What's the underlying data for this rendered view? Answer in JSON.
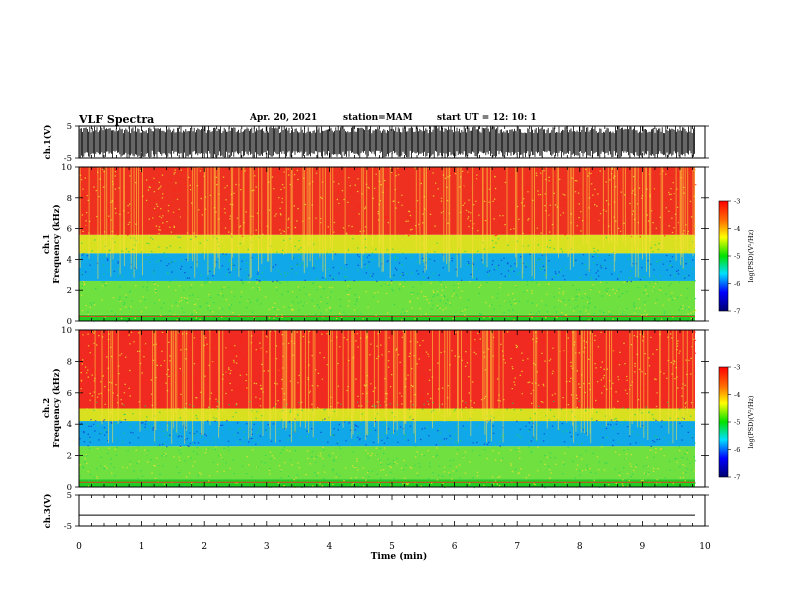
{
  "header": {
    "title": "VLF Spectra",
    "date": "Apr. 20, 2021",
    "station": "station=MAM",
    "start": "start  UT  =   12: 10: 1"
  },
  "chart_data": [
    {
      "type": "line",
      "panel": "ch1-waveform",
      "ylabel": "ch.1(V)",
      "yticks": [
        "5",
        "-5"
      ],
      "ylim": [
        -5,
        5
      ],
      "trace": "dense noise-like waveform filling the range"
    },
    {
      "type": "heatmap",
      "panel": "ch1-spectrogram",
      "ylabel": [
        "ch.1",
        "Frequency (kHz)"
      ],
      "yticks": [
        "0",
        "2",
        "4",
        "6",
        "8",
        "10"
      ],
      "ylim": [
        0,
        10
      ],
      "bands": [
        {
          "from": 0.0,
          "to": 0.4,
          "color": "#22cc22"
        },
        {
          "from": 0.4,
          "to": 2.6,
          "color": "#6ee040"
        },
        {
          "from": 2.6,
          "to": 4.4,
          "color": "#10a8e8"
        },
        {
          "from": 4.4,
          "to": 5.6,
          "color": "#d8e020"
        },
        {
          "from": 5.6,
          "to": 10.0,
          "color": "#ee3020"
        }
      ]
    },
    {
      "type": "heatmap",
      "panel": "ch2-spectrogram",
      "ylabel": [
        "ch.2",
        "Frequency (kHz)"
      ],
      "yticks": [
        "0",
        "2",
        "4",
        "6",
        "8",
        "10"
      ],
      "ylim": [
        0,
        10
      ],
      "bands": [
        {
          "from": 0.0,
          "to": 0.5,
          "color": "#22cc22"
        },
        {
          "from": 0.5,
          "to": 2.6,
          "color": "#70e040"
        },
        {
          "from": 2.6,
          "to": 4.2,
          "color": "#10a8e8"
        },
        {
          "from": 4.2,
          "to": 5.0,
          "color": "#d8e020"
        },
        {
          "from": 5.0,
          "to": 10.0,
          "color": "#f02a20"
        }
      ]
    },
    {
      "type": "line",
      "panel": "ch3-waveform",
      "ylabel": "ch.3(V)",
      "yticks": [
        "5",
        "-5"
      ],
      "ylim": [
        -5,
        5
      ],
      "values_constant": -1.5
    }
  ],
  "xaxis": {
    "label": "Time  (min)",
    "ticks": [
      "0",
      "1",
      "2",
      "3",
      "4",
      "5",
      "6",
      "7",
      "8",
      "9",
      "10"
    ],
    "xlim": [
      0,
      10
    ],
    "data_end": 9.84
  },
  "colorbars": {
    "label": "log(PSD)(V²/Hz)",
    "ticks": [
      "-3",
      "-4",
      "-5",
      "-6",
      "-7"
    ],
    "range": [
      -7,
      -3
    ],
    "colors": [
      "#ff0000",
      "#ff8000",
      "#ffff00",
      "#00ff00",
      "#00ffff",
      "#0000ff",
      "#000080"
    ]
  }
}
